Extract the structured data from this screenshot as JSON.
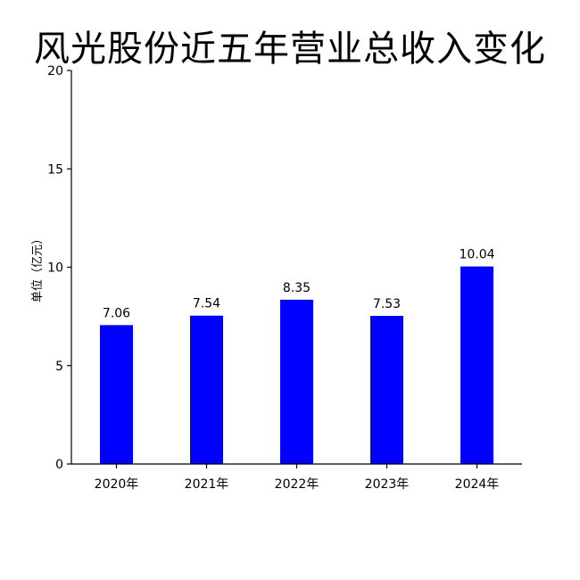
{
  "chart_data": {
    "type": "bar",
    "title": "风光股份近五年营业总收入变化",
    "xlabel": "",
    "ylabel": "单位（亿元）",
    "categories": [
      "2020年",
      "2021年",
      "2022年",
      "2023年",
      "2024年"
    ],
    "values": [
      7.06,
      7.54,
      8.35,
      7.53,
      10.04
    ],
    "data_labels": [
      "7.06",
      "7.54",
      "8.35",
      "7.53",
      "10.04"
    ],
    "ylim": [
      0,
      20
    ],
    "yticks": [
      0,
      5,
      10,
      15,
      20
    ],
    "ytick_labels": [
      "0",
      "5",
      "10",
      "15",
      "20"
    ],
    "bar_color": "#0000ff",
    "grid": false,
    "legend": "none"
  }
}
